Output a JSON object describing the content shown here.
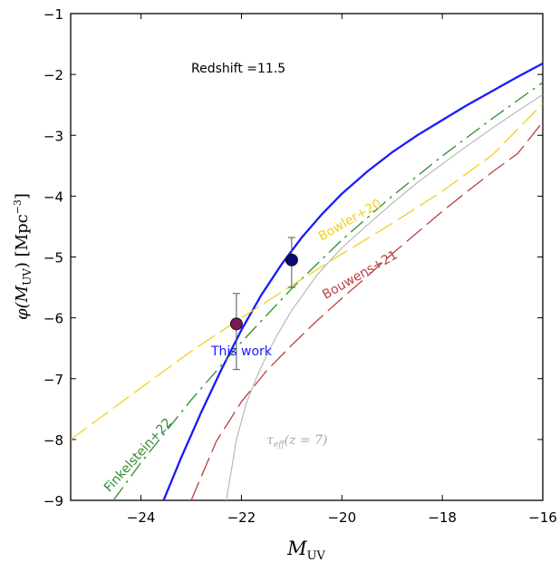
{
  "chart_data": {
    "type": "line",
    "xlabel": "M",
    "xlabel_sub": "UV",
    "ylabel": "φ(M",
    "ylabel_sub": "UV",
    "ylabel_unit": ") [Mpc",
    "ylabel_unit_sup": "−3",
    "ylabel_close": "]",
    "xlim": [
      -25.4,
      -16
    ],
    "ylim": [
      -9,
      -1
    ],
    "x_ticks": [
      -24,
      -22,
      -20,
      -18,
      -16
    ],
    "x_tick_labels": [
      "−24",
      "−22",
      "−20",
      "−18",
      "−16"
    ],
    "y_ticks": [
      -9,
      -8,
      -7,
      -6,
      -5,
      -4,
      -3,
      -2,
      -1
    ],
    "y_tick_labels": [
      "−9",
      "−8",
      "−7",
      "−6",
      "−5",
      "−4",
      "−3",
      "−2",
      "−1"
    ],
    "annotation": "Redshift =11.5",
    "series": [
      {
        "name": "This work",
        "color": "#1a1aff",
        "style": "solid",
        "x": [
          -23.55,
          -23.2,
          -22.8,
          -22.4,
          -22.0,
          -21.6,
          -21.2,
          -20.8,
          -20.4,
          -20.0,
          -19.5,
          -19.0,
          -18.5,
          -18.0,
          -17.5,
          -17.0,
          -16.5,
          -16.0
        ],
        "values": [
          -9.0,
          -8.3,
          -7.55,
          -6.85,
          -6.2,
          -5.62,
          -5.12,
          -4.68,
          -4.3,
          -3.96,
          -3.6,
          -3.28,
          -3.0,
          -2.75,
          -2.5,
          -2.27,
          -2.04,
          -1.82
        ]
      },
      {
        "name": "Finkelstein+22",
        "color": "#2e8b2e",
        "style": "dashdot",
        "x": [
          -24.55,
          -24.0,
          -23.0,
          -22.0,
          -21.0,
          -20.0,
          -19.0,
          -18.0,
          -17.0,
          -16.0
        ],
        "values": [
          -9.0,
          -8.38,
          -7.35,
          -6.4,
          -5.52,
          -4.72,
          -4.0,
          -3.34,
          -2.72,
          -2.13
        ]
      },
      {
        "name": "Bowler+20",
        "color": "#f0d020",
        "style": "dashed",
        "x": [
          -25.4,
          -24.0,
          -23.0,
          -22.0,
          -21.0,
          -20.0,
          -19.0,
          -18.0,
          -17.0,
          -16.0
        ],
        "values": [
          -8.0,
          -7.15,
          -6.55,
          -6.0,
          -5.47,
          -4.95,
          -4.45,
          -3.92,
          -3.32,
          -2.48
        ]
      },
      {
        "name": "Bouwens+21",
        "color": "#b84040",
        "style": "dashed",
        "x": [
          -23.0,
          -22.5,
          -22.0,
          -21.5,
          -21.0,
          -20.5,
          -20.0,
          -19.5,
          -19.0,
          -18.5,
          -18.0,
          -17.5,
          -17.0,
          -16.5,
          -16.0
        ],
        "values": [
          -9.0,
          -8.03,
          -7.38,
          -6.87,
          -6.45,
          -6.05,
          -5.68,
          -5.32,
          -4.95,
          -4.6,
          -4.25,
          -3.92,
          -3.6,
          -3.3,
          -2.78
        ]
      },
      {
        "name": "τeff(z=7)",
        "color": "#b4b4b4",
        "style": "solid",
        "x": [
          -22.3,
          -22.1,
          -21.9,
          -21.7,
          -21.5,
          -21.3,
          -21.0,
          -20.5,
          -20.0,
          -19.5,
          -19.0,
          -18.5,
          -18.0,
          -17.5,
          -17.0,
          -16.5,
          -16.0
        ],
        "values": [
          -9.0,
          -8.0,
          -7.4,
          -6.98,
          -6.62,
          -6.3,
          -5.88,
          -5.3,
          -4.85,
          -4.48,
          -4.12,
          -3.78,
          -3.47,
          -3.17,
          -2.88,
          -2.6,
          -2.33
        ]
      }
    ],
    "points": [
      {
        "x": -22.1,
        "y": -6.1,
        "yerr_low": -6.85,
        "yerr_high": -5.6,
        "color": "#7a1a5a"
      },
      {
        "x": -21.0,
        "y": -5.05,
        "yerr_low": -5.5,
        "yerr_high": -4.68,
        "color": "#0a0a70"
      }
    ],
    "labels": [
      {
        "text": "This work",
        "x": -22.0,
        "y": -6.62,
        "rotate": 0,
        "color": "#1a1aff",
        "size": 15
      },
      {
        "text": "Finkelstein+22",
        "x": -24.0,
        "y": -8.3,
        "rotate": -48,
        "color": "#2e8b2e",
        "size": 14
      },
      {
        "text": "Bowler+20",
        "x": -19.8,
        "y": -4.45,
        "rotate": -30,
        "color": "#f0d020",
        "size": 14
      },
      {
        "text": "Bouwens+21",
        "x": -19.6,
        "y": -5.35,
        "rotate": -30,
        "color": "#b84040",
        "size": 14
      }
    ],
    "tau_label": {
      "tau": "τ",
      "sub": "eff",
      "rest": "(z = 7)",
      "x": -21.5,
      "y": -8.0,
      "color": "#a8a8a8"
    }
  }
}
